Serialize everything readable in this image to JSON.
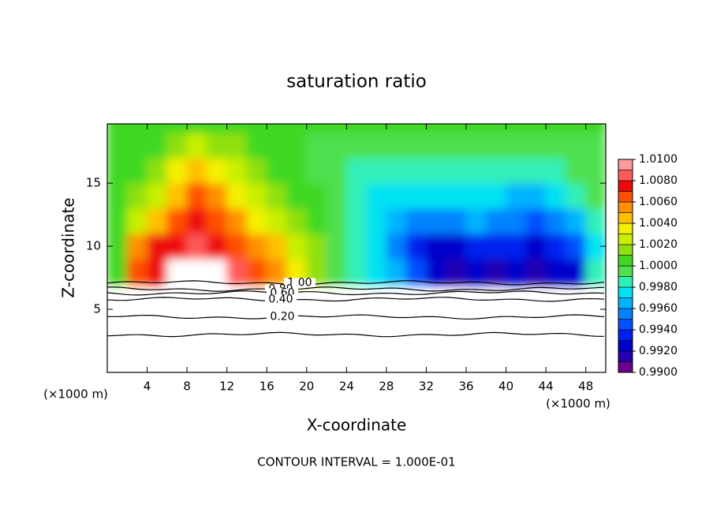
{
  "chart_data": {
    "type": "contour",
    "title": "saturation ratio",
    "xlabel": "X-coordinate",
    "ylabel": "Z-coordinate",
    "x_unit": "(×1000 m)",
    "footer": "CONTOUR INTERVAL = 1.000E-01",
    "xlim": [
      0,
      50
    ],
    "ylim": [
      0,
      19.7
    ],
    "xticks": [
      4,
      8,
      12,
      16,
      20,
      24,
      28,
      32,
      36,
      40,
      44,
      48
    ],
    "yticks": [
      5,
      10,
      15
    ],
    "x": [
      1,
      3,
      5,
      7,
      9,
      11,
      13,
      15,
      17,
      19,
      21,
      23,
      25,
      27,
      29,
      31,
      33,
      35,
      37,
      39,
      41,
      43,
      45,
      47,
      49
    ],
    "y": [
      8,
      10,
      12,
      14,
      16,
      18,
      20
    ],
    "z": [
      [
        1.0,
        1.006,
        1.007,
        0.98,
        0.98,
        0.98,
        1.008,
        1.006,
        1.005,
        1.003,
        1.001,
        0.999,
        0.998,
        0.997,
        0.996,
        0.994,
        0.992,
        0.991,
        0.992,
        0.991,
        0.992,
        0.991,
        0.992,
        0.992,
        0.998
      ],
      [
        1.0,
        1.005,
        1.007,
        1.007,
        1.008,
        1.007,
        1.006,
        1.005,
        1.004,
        1.002,
        1.001,
        0.999,
        0.998,
        0.997,
        0.995,
        0.993,
        0.992,
        0.992,
        0.993,
        0.993,
        0.993,
        0.992,
        0.993,
        0.994,
        0.997
      ],
      [
        1.0,
        1.002,
        1.004,
        1.006,
        1.007,
        1.006,
        1.005,
        1.003,
        1.002,
        1.001,
        1.0,
        0.999,
        0.998,
        0.997,
        0.996,
        0.995,
        0.995,
        0.995,
        0.996,
        0.995,
        0.995,
        0.994,
        0.995,
        0.996,
        0.998
      ],
      [
        1.0,
        1.001,
        1.002,
        1.004,
        1.006,
        1.005,
        1.003,
        1.002,
        1.001,
        1.0,
        1.0,
        0.999,
        0.998,
        0.997,
        0.997,
        0.997,
        0.997,
        0.997,
        0.997,
        0.997,
        0.996,
        0.996,
        0.997,
        0.998,
        0.999
      ],
      [
        1.0,
        1.0,
        1.001,
        1.003,
        1.004,
        1.003,
        1.002,
        1.001,
        1.0,
        1.0,
        0.999,
        0.999,
        0.998,
        0.998,
        0.998,
        0.998,
        0.998,
        0.998,
        0.998,
        0.998,
        0.998,
        0.998,
        0.998,
        0.999,
        0.999
      ],
      [
        1.0,
        1.0,
        1.0,
        1.001,
        1.002,
        1.001,
        1.001,
        1.0,
        1.0,
        1.0,
        0.999,
        0.999,
        0.999,
        0.999,
        0.999,
        0.999,
        0.999,
        0.999,
        0.999,
        0.999,
        0.999,
        0.999,
        0.999,
        0.999,
        0.999
      ],
      [
        1.0,
        1.0,
        1.0,
        1.0,
        1.0,
        1.0,
        1.0,
        1.0,
        1.0,
        1.0,
        1.0,
        1.0,
        1.0,
        1.0,
        1.0,
        1.0,
        1.0,
        1.0,
        1.0,
        1.0,
        1.0,
        1.0,
        1.0,
        1.0,
        1.0
      ]
    ],
    "color_levels": [
      0.99,
      0.991,
      0.992,
      0.993,
      0.994,
      0.995,
      0.996,
      0.997,
      0.998,
      0.999,
      1.0,
      1.001,
      1.002,
      1.003,
      1.004,
      1.005,
      1.006,
      1.007,
      1.008,
      1.009,
      1.01
    ],
    "colors": [
      "#6a0090",
      "#2400b0",
      "#0000cc",
      "#0020ee",
      "#0050ff",
      "#0082ff",
      "#00b4ff",
      "#00e2f2",
      "#30f0b8",
      "#50e050",
      "#40d820",
      "#90e010",
      "#c8f000",
      "#f4f000",
      "#ffc000",
      "#ff9000",
      "#ff5000",
      "#ee0a0a",
      "#ff5a5a",
      "#ff9a9a"
    ],
    "cticks": [
      {
        "value": 0.99,
        "label": "0.9900"
      },
      {
        "value": 0.992,
        "label": "0.9920"
      },
      {
        "value": 0.994,
        "label": "0.9940"
      },
      {
        "value": 0.996,
        "label": "0.9960"
      },
      {
        "value": 0.998,
        "label": "0.9980"
      },
      {
        "value": 1.0,
        "label": "1.0000"
      },
      {
        "value": 1.002,
        "label": "1.0020"
      },
      {
        "value": 1.004,
        "label": "1.0040"
      },
      {
        "value": 1.006,
        "label": "1.0060"
      },
      {
        "value": 1.008,
        "label": "1.0080"
      },
      {
        "value": 1.01,
        "label": "1.0100"
      }
    ],
    "contour_levels": [
      1.0,
      0.8,
      0.6,
      0.4,
      0.2,
      0.1
    ],
    "contour_labels": [
      "1.00",
      "0.80",
      "0.60",
      "0.40",
      "0.20",
      null
    ],
    "contour_heights": [
      7.1,
      6.6,
      6.3,
      5.8,
      4.4,
      3.0
    ]
  }
}
